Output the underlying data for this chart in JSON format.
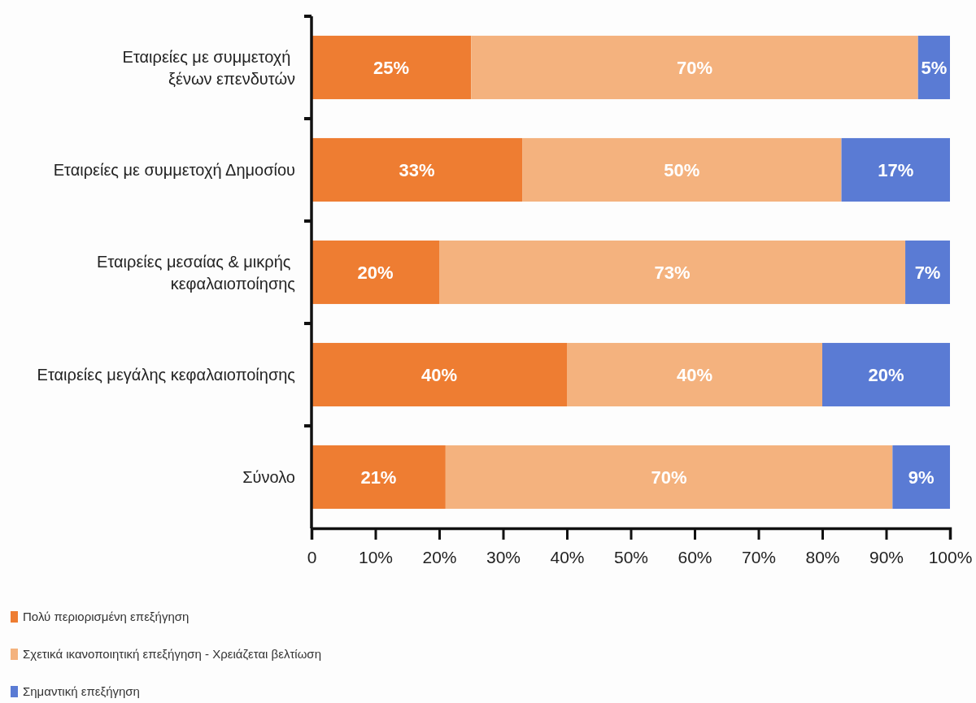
{
  "chart_data": {
    "type": "bar",
    "orientation": "horizontal",
    "stacked": true,
    "categories": [
      "Εταιρείες με συμμετοχή\nξένων επενδυτών",
      "Εταιρείες με συμμετοχή Δημοσίου",
      "Εταιρείες μεσαίας & μικρής\nκεφαλαιοποίησης",
      "Εταιρείες μεγάλης κεφαλαιοποίησης",
      "Σύνολο"
    ],
    "series": [
      {
        "name": "Πολύ περιορισμένη επεξήγηση",
        "color": "#ee7d32",
        "values": [
          25,
          33,
          20,
          40,
          21
        ],
        "value_labels": [
          "25%",
          "33%",
          "20%",
          "40%",
          "21%"
        ]
      },
      {
        "name": "Σχετικά ικανοποιητική επεξήγηση - Χρειάζεται βελτίωση",
        "color": "#f4b27e",
        "values": [
          70,
          50,
          73,
          40,
          70
        ],
        "value_labels": [
          "70%",
          "50%",
          "73%",
          "40%",
          "70%"
        ]
      },
      {
        "name": "Σημαντική επεξήγηση",
        "color": "#5a7bd4",
        "values": [
          5,
          17,
          7,
          20,
          9
        ],
        "value_labels": [
          "5%",
          "17%",
          "7%",
          "20%",
          "9%"
        ]
      }
    ],
    "xlim": [
      0,
      100
    ],
    "xticks": [
      0,
      {
        "value": 10,
        "label": "10%"
      },
      {
        "value": 20,
        "label": "20%"
      },
      {
        "value": 30,
        "label": "30%"
      },
      {
        "value": 40,
        "label": "40%"
      },
      {
        "value": 50,
        "label": "50%"
      },
      {
        "value": 60,
        "label": "60%"
      },
      {
        "value": 70,
        "label": "70%"
      },
      {
        "value": 80,
        "label": "80%"
      },
      {
        "value": 90,
        "label": "90%"
      },
      {
        "value": 100,
        "label": "100%"
      }
    ],
    "legend": "bottom left"
  }
}
